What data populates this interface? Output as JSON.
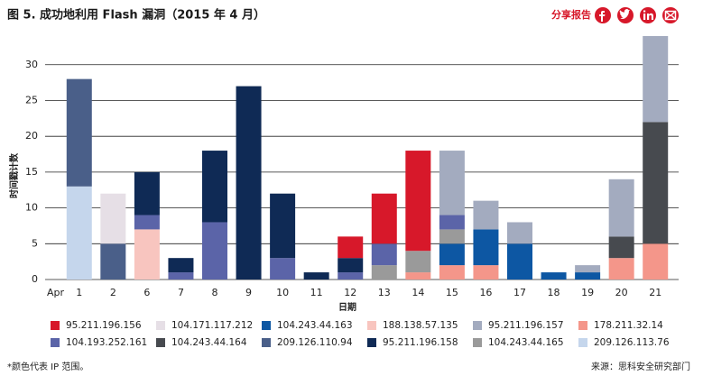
{
  "header": {
    "share": "分享报告"
  },
  "chart_data": {
    "type": "stacked_bar",
    "title": "图 5. 成功地利用 Flash 漏洞（2015 年 4 月）",
    "x_prefix": "Apr",
    "xlabel": "日期",
    "ylabel": "时间戳计数",
    "categories": [
      "1",
      "2",
      "6",
      "7",
      "8",
      "9",
      "10",
      "11",
      "12",
      "13",
      "14",
      "15",
      "16",
      "17",
      "18",
      "19",
      "20",
      "21"
    ],
    "ylim": [
      0,
      34
    ],
    "yticks": [
      0,
      5,
      10,
      15,
      20,
      25,
      30
    ],
    "grid": true,
    "series": [
      {
        "name": "95.211.196.156",
        "color": "#d7182a",
        "values": [
          null,
          null,
          null,
          null,
          null,
          null,
          null,
          null,
          3,
          7,
          14,
          null,
          null,
          null,
          null,
          null,
          null,
          null
        ]
      },
      {
        "name": "104.171.117.212",
        "color": "#e6dfe6",
        "values": [
          null,
          7,
          null,
          null,
          null,
          null,
          null,
          null,
          null,
          null,
          null,
          null,
          null,
          null,
          null,
          null,
          null,
          null
        ]
      },
      {
        "name": "104.243.44.163",
        "color": "#0d57a3",
        "values": [
          null,
          null,
          null,
          null,
          null,
          null,
          null,
          null,
          null,
          null,
          null,
          3,
          5,
          5,
          1,
          1,
          null,
          null
        ]
      },
      {
        "name": "188.138.57.135",
        "color": "#f8c5bf",
        "values": [
          null,
          null,
          7,
          null,
          null,
          null,
          null,
          null,
          null,
          null,
          null,
          null,
          null,
          null,
          null,
          null,
          null,
          null
        ]
      },
      {
        "name": "95.211.196.157",
        "color": "#a3abbf",
        "values": [
          null,
          null,
          null,
          null,
          null,
          null,
          null,
          null,
          null,
          null,
          null,
          9,
          4,
          3,
          null,
          1,
          8,
          12
        ]
      },
      {
        "name": "178.211.32.14",
        "color": "#f4968a",
        "values": [
          null,
          null,
          null,
          null,
          null,
          null,
          null,
          null,
          null,
          null,
          1,
          2,
          2,
          null,
          null,
          null,
          3,
          5
        ]
      },
      {
        "name": "104.193.252.161",
        "color": "#5b64a8",
        "values": [
          null,
          null,
          2,
          1,
          8,
          null,
          3,
          null,
          1,
          3,
          null,
          2,
          null,
          null,
          null,
          null,
          null,
          null
        ]
      },
      {
        "name": "104.243.44.164",
        "color": "#474a4f",
        "values": [
          null,
          null,
          null,
          null,
          null,
          null,
          null,
          null,
          null,
          null,
          null,
          null,
          null,
          null,
          null,
          null,
          3,
          17
        ]
      },
      {
        "name": "209.126.110.94",
        "color": "#4a5f89",
        "values": [
          15,
          5,
          null,
          null,
          null,
          null,
          null,
          null,
          null,
          null,
          null,
          null,
          null,
          null,
          null,
          null,
          null,
          null
        ]
      },
      {
        "name": "95.211.196.158",
        "color": "#0f2a55",
        "values": [
          null,
          null,
          6,
          2,
          10,
          27,
          9,
          1,
          2,
          null,
          null,
          null,
          null,
          null,
          null,
          null,
          null,
          null
        ]
      },
      {
        "name": "104.243.44.165",
        "color": "#9a9a9a",
        "values": [
          null,
          null,
          null,
          null,
          null,
          null,
          null,
          null,
          null,
          2,
          3,
          2,
          null,
          null,
          null,
          null,
          null,
          null
        ]
      },
      {
        "name": "209.126.113.76",
        "color": "#c5d6ec",
        "values": [
          13,
          null,
          null,
          null,
          null,
          null,
          null,
          null,
          null,
          null,
          null,
          null,
          null,
          null,
          null,
          null,
          null,
          null
        ]
      }
    ]
  },
  "footer": {
    "note": "*颜色代表 IP 范围。",
    "source": "来源：思科安全研究部门"
  }
}
